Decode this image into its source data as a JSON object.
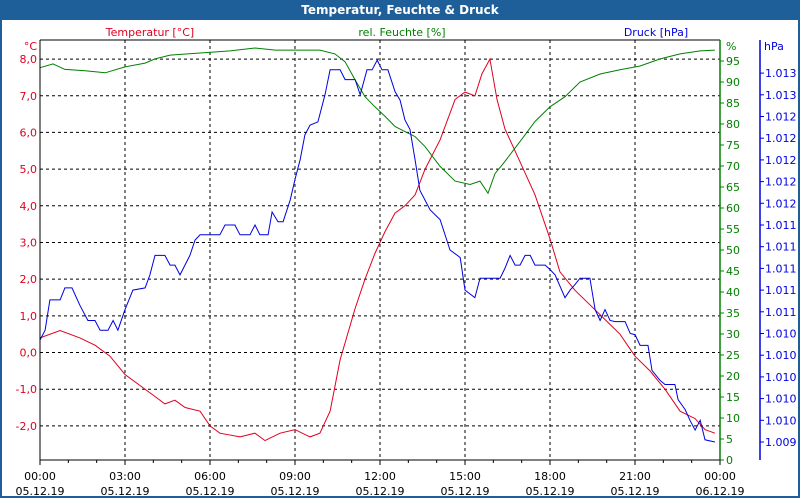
{
  "window": {
    "title": "Temperatur, Feuchte & Druck"
  },
  "colors": {
    "temperature": "#e00020",
    "humidity": "#008000",
    "pressure": "#0000e0",
    "titlebar": "#1f5f99"
  },
  "chart_data": {
    "type": "line",
    "title": "Temperatur, Feuchte & Druck",
    "xlabel": "",
    "x_unit": "hours since 05.12.19 00:00",
    "xlim": [
      0,
      24
    ],
    "x_ticks": [
      {
        "time": "00:00",
        "date": "05.12.19"
      },
      {
        "time": "03:00",
        "date": "05.12.19"
      },
      {
        "time": "06:00",
        "date": "05.12.19"
      },
      {
        "time": "09:00",
        "date": "05.12.19"
      },
      {
        "time": "12:00",
        "date": "05.12.19"
      },
      {
        "time": "15:00",
        "date": "05.12.19"
      },
      {
        "time": "18:00",
        "date": "05.12.19"
      },
      {
        "time": "21:00",
        "date": "05.12.19"
      },
      {
        "time": "00:00",
        "date": "06.12.19"
      }
    ],
    "grid": true,
    "axes": {
      "temperature": {
        "label": "Temperatur [°C]",
        "unit": "°C",
        "ylim": [
          -2.93,
          8.52
        ],
        "ticks": [
          "8,0",
          "7,0",
          "6,0",
          "5,0",
          "4,0",
          "3,0",
          "2,0",
          "1,0",
          "0,0",
          "-1,0",
          "-2,0"
        ],
        "tick_values": [
          8,
          7,
          6,
          5,
          4,
          3,
          2,
          1,
          0,
          -1,
          -2
        ]
      },
      "humidity": {
        "label": "rel. Feuchte [%]",
        "unit": "%",
        "ylim": [
          0,
          100
        ],
        "ticks": [
          "95",
          "90",
          "85",
          "80",
          "75",
          "70",
          "65",
          "60",
          "55",
          "50",
          "45",
          "40",
          "35",
          "30",
          "25",
          "20",
          "15",
          "10",
          "5",
          "0"
        ],
        "tick_values": [
          95,
          90,
          85,
          80,
          75,
          70,
          65,
          60,
          55,
          50,
          45,
          40,
          35,
          30,
          25,
          20,
          15,
          10,
          5,
          0
        ]
      },
      "pressure": {
        "label": "Druck [hPa]",
        "unit": "hPa",
        "ticks": [
          "1.013",
          "1.013",
          "1.012",
          "1.012",
          "1.012",
          "1.012",
          "1.012",
          "1.011",
          "1.011",
          "1.011",
          "1.011",
          "1.011",
          "1.010",
          "1.010",
          "1.010",
          "1.010",
          "1.010",
          "1.009"
        ],
        "tick_values": [
          1.0128,
          1.0126,
          1.0124,
          1.0122,
          1.012,
          1.0118,
          1.0116,
          1.0114,
          1.0112,
          1.011,
          1.0108,
          1.0106,
          1.0104,
          1.0102,
          1.01,
          1.0098,
          1.0096,
          1.0094
        ]
      }
    },
    "series": [
      {
        "name": "Temperatur",
        "axis": "temperature",
        "points": [
          [
            0,
            0.4
          ],
          [
            0.71,
            0.6
          ],
          [
            1.41,
            0.4
          ],
          [
            1.94,
            0.2
          ],
          [
            2.47,
            -0.1
          ],
          [
            3,
            -0.6
          ],
          [
            3.53,
            -0.9
          ],
          [
            4.06,
            -1.2
          ],
          [
            4.41,
            -1.4
          ],
          [
            4.76,
            -1.3
          ],
          [
            5.12,
            -1.5
          ],
          [
            5.65,
            -1.6
          ],
          [
            6,
            -2.0
          ],
          [
            6.35,
            -2.2
          ],
          [
            7.06,
            -2.3
          ],
          [
            7.59,
            -2.2
          ],
          [
            7.94,
            -2.4
          ],
          [
            8.47,
            -2.2
          ],
          [
            9,
            -2.1
          ],
          [
            9.53,
            -2.3
          ],
          [
            9.88,
            -2.2
          ],
          [
            10.24,
            -1.6
          ],
          [
            10.59,
            -0.2
          ],
          [
            11.12,
            1.2
          ],
          [
            11.47,
            2.0
          ],
          [
            11.82,
            2.7
          ],
          [
            12.18,
            3.3
          ],
          [
            12.53,
            3.8
          ],
          [
            12.88,
            4.0
          ],
          [
            13.24,
            4.3
          ],
          [
            13.59,
            5.0
          ],
          [
            14.12,
            5.8
          ],
          [
            14.65,
            6.9
          ],
          [
            15,
            7.1
          ],
          [
            15.35,
            7.0
          ],
          [
            15.6,
            7.6
          ],
          [
            15.88,
            8.0
          ],
          [
            16.13,
            6.9
          ],
          [
            16.41,
            6.1
          ],
          [
            16.94,
            5.2
          ],
          [
            17.47,
            4.3
          ],
          [
            18,
            3.1
          ],
          [
            18.35,
            2.2
          ],
          [
            18.88,
            1.7
          ],
          [
            19.41,
            1.3
          ],
          [
            19.94,
            0.9
          ],
          [
            20.47,
            0.5
          ],
          [
            21,
            -0.1
          ],
          [
            21.53,
            -0.5
          ],
          [
            22.06,
            -1.0
          ],
          [
            22.59,
            -1.6
          ],
          [
            23.12,
            -1.8
          ],
          [
            23.47,
            -2.1
          ],
          [
            23.82,
            -2.2
          ]
        ]
      },
      {
        "name": "rel. Feuchte",
        "axis": "humidity",
        "points": [
          [
            0,
            93.4
          ],
          [
            0.46,
            94.3
          ],
          [
            0.88,
            93
          ],
          [
            1.59,
            92.7
          ],
          [
            2.3,
            92.2
          ],
          [
            3,
            93.6
          ],
          [
            3.71,
            94.5
          ],
          [
            4.06,
            95.5
          ],
          [
            4.59,
            96.4
          ],
          [
            5.65,
            96.9
          ],
          [
            6.71,
            97.4
          ],
          [
            7.59,
            98.1
          ],
          [
            8.3,
            97.6
          ],
          [
            9,
            97.6
          ],
          [
            9.88,
            97.6
          ],
          [
            10.41,
            96.7
          ],
          [
            10.77,
            94.8
          ],
          [
            11.12,
            90.5
          ],
          [
            11.47,
            86.5
          ],
          [
            11.82,
            84.1
          ],
          [
            12.18,
            81.8
          ],
          [
            12.53,
            79.4
          ],
          [
            12.88,
            78.2
          ],
          [
            13.24,
            77
          ],
          [
            13.59,
            74.6
          ],
          [
            14.12,
            69.9
          ],
          [
            14.65,
            66.4
          ],
          [
            15.18,
            65.6
          ],
          [
            15.53,
            66.4
          ],
          [
            15.81,
            63.5
          ],
          [
            16.06,
            68.2
          ],
          [
            16.41,
            71.1
          ],
          [
            16.94,
            75.8
          ],
          [
            17.47,
            80.6
          ],
          [
            18,
            84.1
          ],
          [
            18.53,
            86.5
          ],
          [
            19.06,
            90
          ],
          [
            19.77,
            91.9
          ],
          [
            20.47,
            92.9
          ],
          [
            21.18,
            93.8
          ],
          [
            21.89,
            95.5
          ],
          [
            22.59,
            96.7
          ],
          [
            23.3,
            97.4
          ],
          [
            23.82,
            97.6
          ]
        ]
      },
      {
        "name": "Druck",
        "axis": "pressure",
        "points": [
          [
            0,
            1.01034
          ],
          [
            0.18,
            1.01043
          ],
          [
            0.35,
            1.01071
          ],
          [
            0.71,
            1.01071
          ],
          [
            0.88,
            1.01082
          ],
          [
            1.13,
            1.01082
          ],
          [
            1.41,
            1.01066
          ],
          [
            1.69,
            1.01052
          ],
          [
            1.94,
            1.01052
          ],
          [
            2.12,
            1.01043
          ],
          [
            2.4,
            1.01043
          ],
          [
            2.58,
            1.01052
          ],
          [
            2.75,
            1.01043
          ],
          [
            3,
            1.01062
          ],
          [
            3.28,
            1.0108
          ],
          [
            3.71,
            1.01082
          ],
          [
            3.88,
            1.01094
          ],
          [
            4.06,
            1.01112
          ],
          [
            4.41,
            1.01112
          ],
          [
            4.59,
            1.01103
          ],
          [
            4.76,
            1.01103
          ],
          [
            4.94,
            1.01094
          ],
          [
            5.29,
            1.01112
          ],
          [
            5.47,
            1.01126
          ],
          [
            5.65,
            1.01131
          ],
          [
            6,
            1.01131
          ],
          [
            6.35,
            1.01131
          ],
          [
            6.53,
            1.0114
          ],
          [
            6.88,
            1.0114
          ],
          [
            7.06,
            1.01131
          ],
          [
            7.41,
            1.01131
          ],
          [
            7.59,
            1.0114
          ],
          [
            7.76,
            1.01131
          ],
          [
            8.05,
            1.01131
          ],
          [
            8.19,
            1.01152
          ],
          [
            8.4,
            1.01143
          ],
          [
            8.58,
            1.01143
          ],
          [
            8.83,
            1.01163
          ],
          [
            9,
            1.01182
          ],
          [
            9.18,
            1.012
          ],
          [
            9.35,
            1.01223
          ],
          [
            9.53,
            1.01232
          ],
          [
            9.81,
            1.01235
          ],
          [
            10.06,
            1.0126
          ],
          [
            10.24,
            1.01283
          ],
          [
            10.59,
            1.01283
          ],
          [
            10.77,
            1.01274
          ],
          [
            11.12,
            1.01274
          ],
          [
            11.3,
            1.0126
          ],
          [
            11.54,
            1.01283
          ],
          [
            11.72,
            1.01283
          ],
          [
            11.9,
            1.01292
          ],
          [
            12.07,
            1.01283
          ],
          [
            12.28,
            1.01283
          ],
          [
            12.53,
            1.01263
          ],
          [
            12.71,
            1.01255
          ],
          [
            12.88,
            1.01237
          ],
          [
            13.06,
            1.01228
          ],
          [
            13.24,
            1.012
          ],
          [
            13.41,
            1.01172
          ],
          [
            13.77,
            1.01154
          ],
          [
            14.12,
            1.01145
          ],
          [
            14.47,
            1.01117
          ],
          [
            14.83,
            1.0111
          ],
          [
            15,
            1.0108
          ],
          [
            15.35,
            1.01073
          ],
          [
            15.53,
            1.01091
          ],
          [
            15.88,
            1.01091
          ],
          [
            16.24,
            1.01091
          ],
          [
            16.41,
            1.011
          ],
          [
            16.59,
            1.01112
          ],
          [
            16.77,
            1.01103
          ],
          [
            16.94,
            1.01103
          ],
          [
            17.12,
            1.01112
          ],
          [
            17.3,
            1.01112
          ],
          [
            17.47,
            1.01103
          ],
          [
            17.83,
            1.01103
          ],
          [
            18,
            1.01099
          ],
          [
            18.18,
            1.01094
          ],
          [
            18.53,
            1.01073
          ],
          [
            18.71,
            1.0108
          ],
          [
            18.88,
            1.01085
          ],
          [
            19.06,
            1.01091
          ],
          [
            19.41,
            1.01091
          ],
          [
            19.59,
            1.01062
          ],
          [
            19.77,
            1.01052
          ],
          [
            19.94,
            1.01062
          ],
          [
            20.12,
            1.01052
          ],
          [
            20.3,
            1.01051
          ],
          [
            20.65,
            1.01051
          ],
          [
            20.83,
            1.0104
          ],
          [
            21,
            1.01039
          ],
          [
            21.18,
            1.01029
          ],
          [
            21.46,
            1.01029
          ],
          [
            21.6,
            1.01006
          ],
          [
            21.88,
            1.00997
          ],
          [
            22.06,
            1.00993
          ],
          [
            22.41,
            1.00993
          ],
          [
            22.52,
            1.00979
          ],
          [
            22.77,
            1.0097
          ],
          [
            22.94,
            1.0096
          ],
          [
            23.12,
            1.00951
          ],
          [
            23.3,
            1.0096
          ],
          [
            23.47,
            1.00942
          ],
          [
            23.82,
            1.0094
          ]
        ]
      }
    ]
  }
}
